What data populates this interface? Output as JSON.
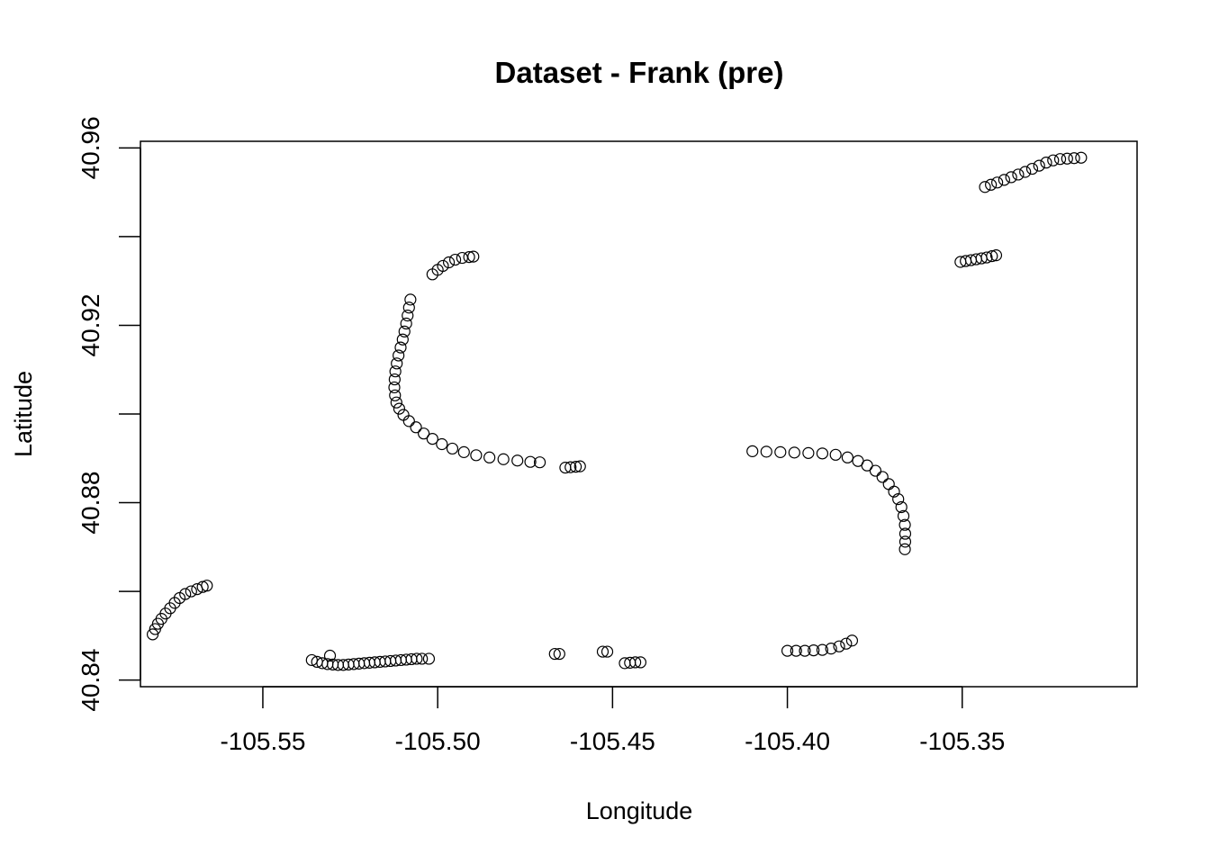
{
  "chart_data": {
    "type": "scatter",
    "title": "Dataset - Frank (pre)",
    "xlabel": "Longitude",
    "ylabel": "Latitude",
    "xlim": [
      -105.585,
      -105.3
    ],
    "ylim": [
      40.8385,
      40.9615
    ],
    "x_ticks": [
      -105.55,
      -105.5,
      -105.45,
      -105.4,
      -105.35
    ],
    "x_tick_labels": [
      "-105.55",
      "-105.50",
      "-105.45",
      "-105.40",
      "-105.35"
    ],
    "y_ticks": [
      40.84,
      40.86,
      40.88,
      40.9,
      40.92,
      40.94,
      40.96
    ],
    "y_tick_labels": [
      "40.84",
      "",
      "40.88",
      "",
      "40.92",
      "",
      "40.96"
    ],
    "grid": false,
    "marker": "open-circle",
    "series": [
      {
        "points": [
          [
            -105.5815,
            40.8503
          ],
          [
            -105.5808,
            40.8515
          ],
          [
            -105.58,
            40.8527
          ],
          [
            -105.579,
            40.8538
          ],
          [
            -105.5778,
            40.855
          ],
          [
            -105.5765,
            40.8562
          ],
          [
            -105.5752,
            40.8574
          ],
          [
            -105.5738,
            40.8585
          ],
          [
            -105.5722,
            40.8594
          ],
          [
            -105.5705,
            40.86
          ],
          [
            -105.5688,
            40.8605
          ],
          [
            -105.5672,
            40.861
          ],
          [
            -105.566,
            40.8613
          ],
          [
            -105.536,
            40.8445
          ],
          [
            -105.5345,
            40.8441
          ],
          [
            -105.533,
            40.8438
          ],
          [
            -105.5315,
            40.8436
          ],
          [
            -105.5308,
            40.8455
          ],
          [
            -105.53,
            40.8435
          ],
          [
            -105.5285,
            40.8434
          ],
          [
            -105.527,
            40.8434
          ],
          [
            -105.5255,
            40.8435
          ],
          [
            -105.524,
            40.8436
          ],
          [
            -105.5225,
            40.8437
          ],
          [
            -105.521,
            40.8438
          ],
          [
            -105.5195,
            40.8439
          ],
          [
            -105.518,
            40.844
          ],
          [
            -105.5165,
            40.8441
          ],
          [
            -105.515,
            40.8442
          ],
          [
            -105.5135,
            40.8443
          ],
          [
            -105.512,
            40.8444
          ],
          [
            -105.5105,
            40.8445
          ],
          [
            -105.509,
            40.8446
          ],
          [
            -105.5075,
            40.8447
          ],
          [
            -105.506,
            40.8448
          ],
          [
            -105.5045,
            40.8448
          ],
          [
            -105.5025,
            40.8448
          ],
          [
            -105.5015,
            40.9315
          ],
          [
            -105.5,
            40.9325
          ],
          [
            -105.4985,
            40.9334
          ],
          [
            -105.4968,
            40.9342
          ],
          [
            -105.495,
            40.9348
          ],
          [
            -105.493,
            40.9352
          ],
          [
            -105.491,
            40.9354
          ],
          [
            -105.4898,
            40.9355
          ],
          [
            -105.5078,
            40.9258
          ],
          [
            -105.5082,
            40.924
          ],
          [
            -105.5086,
            40.9222
          ],
          [
            -105.509,
            40.9204
          ],
          [
            -105.5095,
            40.9186
          ],
          [
            -105.51,
            40.9168
          ],
          [
            -105.5106,
            40.915
          ],
          [
            -105.5112,
            40.9132
          ],
          [
            -105.5117,
            40.9114
          ],
          [
            -105.5121,
            40.9096
          ],
          [
            -105.5123,
            40.9078
          ],
          [
            -105.5124,
            40.906
          ],
          [
            -105.5122,
            40.9042
          ],
          [
            -105.5118,
            40.9026
          ],
          [
            -105.511,
            40.9012
          ],
          [
            -105.5098,
            40.8998
          ],
          [
            -105.5082,
            40.8984
          ],
          [
            -105.5062,
            40.897
          ],
          [
            -105.504,
            40.8956
          ],
          [
            -105.5015,
            40.8944
          ],
          [
            -105.4988,
            40.8932
          ],
          [
            -105.4958,
            40.8922
          ],
          [
            -105.4925,
            40.8914
          ],
          [
            -105.489,
            40.8907
          ],
          [
            -105.4852,
            40.8902
          ],
          [
            -105.4812,
            40.8898
          ],
          [
            -105.4772,
            40.8895
          ],
          [
            -105.4735,
            40.8892
          ],
          [
            -105.4708,
            40.8891
          ],
          [
            -105.4665,
            40.8459
          ],
          [
            -105.4652,
            40.8459
          ],
          [
            -105.4635,
            40.8879
          ],
          [
            -105.462,
            40.888
          ],
          [
            -105.4605,
            40.8881
          ],
          [
            -105.4593,
            40.8882
          ],
          [
            -105.4528,
            40.8464
          ],
          [
            -105.4515,
            40.8464
          ],
          [
            -105.4465,
            40.8438
          ],
          [
            -105.445,
            40.8439
          ],
          [
            -105.4435,
            40.844
          ],
          [
            -105.442,
            40.844
          ],
          [
            -105.41,
            40.8916
          ],
          [
            -105.406,
            40.8915
          ],
          [
            -105.402,
            40.8914
          ],
          [
            -105.398,
            40.8913
          ],
          [
            -105.394,
            40.8912
          ],
          [
            -105.39,
            40.8911
          ],
          [
            -105.3862,
            40.8908
          ],
          [
            -105.3828,
            40.8902
          ],
          [
            -105.3798,
            40.8894
          ],
          [
            -105.3772,
            40.8884
          ],
          [
            -105.3748,
            40.8872
          ],
          [
            -105.3728,
            40.8858
          ],
          [
            -105.371,
            40.8842
          ],
          [
            -105.3695,
            40.8825
          ],
          [
            -105.3683,
            40.8808
          ],
          [
            -105.3674,
            40.879
          ],
          [
            -105.3668,
            40.877
          ],
          [
            -105.3664,
            40.875
          ],
          [
            -105.3663,
            40.873
          ],
          [
            -105.3663,
            40.8712
          ],
          [
            -105.3664,
            40.8695
          ],
          [
            -105.4,
            40.8466
          ],
          [
            -105.3975,
            40.8466
          ],
          [
            -105.395,
            40.8466
          ],
          [
            -105.3925,
            40.8467
          ],
          [
            -105.39,
            40.8468
          ],
          [
            -105.3875,
            40.8471
          ],
          [
            -105.3852,
            40.8476
          ],
          [
            -105.3832,
            40.8482
          ],
          [
            -105.3815,
            40.8489
          ],
          [
            -105.3505,
            40.9343
          ],
          [
            -105.349,
            40.9345
          ],
          [
            -105.3475,
            40.9347
          ],
          [
            -105.346,
            40.9349
          ],
          [
            -105.3445,
            40.9351
          ],
          [
            -105.343,
            40.9353
          ],
          [
            -105.3415,
            40.9356
          ],
          [
            -105.3403,
            40.9358
          ],
          [
            -105.3435,
            40.9512
          ],
          [
            -105.3418,
            40.9517
          ],
          [
            -105.34,
            40.9522
          ],
          [
            -105.338,
            40.9528
          ],
          [
            -105.336,
            40.9534
          ],
          [
            -105.334,
            40.954
          ],
          [
            -105.332,
            40.9546
          ],
          [
            -105.33,
            40.9553
          ],
          [
            -105.328,
            40.956
          ],
          [
            -105.326,
            40.9567
          ],
          [
            -105.324,
            40.9572
          ],
          [
            -105.322,
            40.9575
          ],
          [
            -105.32,
            40.9576
          ],
          [
            -105.318,
            40.9577
          ],
          [
            -105.316,
            40.9578
          ]
        ]
      }
    ]
  }
}
